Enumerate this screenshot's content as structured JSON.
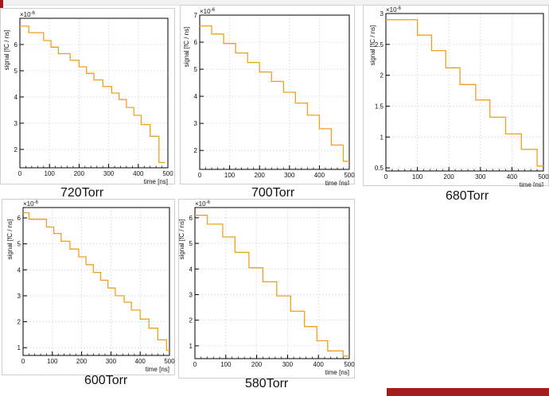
{
  "chart_data": [
    {
      "type": "line",
      "caption": "720Torr",
      "xlabel": "time [ns]",
      "ylabel": "signal [fC / ns]",
      "exponent": "×10",
      "exponent_power": "-6",
      "xlim": [
        0,
        500
      ],
      "ylim": [
        1.3,
        7.0
      ],
      "xticks": [
        0,
        100,
        200,
        300,
        400,
        500
      ],
      "yticks": [
        2,
        3,
        4,
        5,
        6
      ],
      "grid": true,
      "color": "#f0a020",
      "series": [
        {
          "x": [
            0,
            30,
            30,
            80,
            80,
            105,
            105,
            130,
            130,
            170,
            170,
            200,
            200,
            225,
            225,
            250,
            250,
            280,
            280,
            310,
            310,
            335,
            335,
            360,
            360,
            385,
            385,
            410,
            410,
            440,
            440,
            470,
            470,
            490
          ],
          "y": [
            6.7,
            6.7,
            6.45,
            6.45,
            6.15,
            6.15,
            5.9,
            5.9,
            5.65,
            5.65,
            5.4,
            5.4,
            5.15,
            5.15,
            4.9,
            4.9,
            4.65,
            4.65,
            4.4,
            4.4,
            4.15,
            4.15,
            3.9,
            3.9,
            3.6,
            3.6,
            3.3,
            3.3,
            2.95,
            2.95,
            2.5,
            2.5,
            1.5,
            1.5
          ]
        }
      ]
    },
    {
      "type": "line",
      "caption": "700Torr",
      "xlabel": "time [ns]",
      "ylabel": "signal [fC / ns]",
      "exponent": "×10",
      "exponent_power": "-6",
      "xlim": [
        0,
        500
      ],
      "ylim": [
        1.3,
        7.0
      ],
      "xticks": [
        0,
        100,
        200,
        300,
        400,
        500
      ],
      "yticks": [
        2,
        3,
        4,
        5,
        6,
        7
      ],
      "grid": true,
      "color": "#f0a020",
      "series": [
        {
          "x": [
            0,
            40,
            40,
            80,
            80,
            120,
            120,
            160,
            160,
            200,
            200,
            240,
            240,
            280,
            280,
            320,
            320,
            360,
            360,
            400,
            400,
            440,
            440,
            480,
            480,
            500
          ],
          "y": [
            6.6,
            6.6,
            6.3,
            6.3,
            5.95,
            5.95,
            5.6,
            5.6,
            5.25,
            5.25,
            4.9,
            4.9,
            4.55,
            4.55,
            4.15,
            4.15,
            3.75,
            3.75,
            3.3,
            3.3,
            2.8,
            2.8,
            2.2,
            2.2,
            1.6,
            1.6
          ]
        }
      ]
    },
    {
      "type": "line",
      "caption": "680Torr",
      "xlabel": "time [ns]",
      "ylabel": "signal [fC / ns]",
      "exponent": "×10",
      "exponent_power": "-6",
      "xlim": [
        0,
        500
      ],
      "ylim": [
        0.45,
        3.0
      ],
      "xticks": [
        0,
        100,
        200,
        300,
        400,
        500
      ],
      "yticks": [
        0.5,
        1,
        1.5,
        2,
        2.5,
        3
      ],
      "yticklabels": [
        "0.5",
        "1",
        "1.5",
        "2",
        "2.5",
        "3"
      ],
      "grid": true,
      "color": "#f0a020",
      "series": [
        {
          "x": [
            0,
            100,
            100,
            145,
            145,
            190,
            190,
            235,
            235,
            285,
            285,
            330,
            330,
            380,
            380,
            430,
            430,
            480,
            480,
            500
          ],
          "y": [
            2.9,
            2.9,
            2.65,
            2.65,
            2.4,
            2.4,
            2.12,
            2.12,
            1.85,
            1.85,
            1.6,
            1.6,
            1.32,
            1.32,
            1.05,
            1.05,
            0.8,
            0.8,
            0.53,
            0.53
          ]
        }
      ]
    },
    {
      "type": "line",
      "caption": "600Torr",
      "xlabel": "time [ns]",
      "ylabel": "signal [fC / ns]",
      "exponent": "×10",
      "exponent_power": "-6",
      "xlim": [
        0,
        500
      ],
      "ylim": [
        0.7,
        6.4
      ],
      "xticks": [
        0,
        100,
        200,
        300,
        400,
        500
      ],
      "yticks": [
        1,
        2,
        3,
        4,
        5,
        6
      ],
      "grid": true,
      "color": "#f0a020",
      "series": [
        {
          "x": [
            0,
            20,
            20,
            80,
            80,
            105,
            105,
            130,
            130,
            160,
            160,
            190,
            190,
            215,
            215,
            240,
            240,
            265,
            265,
            290,
            290,
            315,
            315,
            345,
            345,
            370,
            370,
            400,
            400,
            430,
            430,
            460,
            460,
            490,
            490,
            500
          ],
          "y": [
            6.2,
            6.2,
            5.95,
            5.95,
            5.65,
            5.65,
            5.4,
            5.4,
            5.1,
            5.1,
            4.8,
            4.8,
            4.5,
            4.5,
            4.2,
            4.2,
            3.9,
            3.9,
            3.6,
            3.6,
            3.3,
            3.3,
            3.0,
            3.0,
            2.75,
            2.75,
            2.45,
            2.45,
            2.1,
            2.1,
            1.75,
            1.75,
            1.3,
            1.3,
            0.9,
            0.9
          ]
        }
      ]
    },
    {
      "type": "line",
      "caption": "580Torr",
      "xlabel": "time [ns]",
      "ylabel": "signal [fC / ns]",
      "exponent": "×10",
      "exponent_power": "-6",
      "xlim": [
        0,
        500
      ],
      "ylim": [
        0.5,
        6.4
      ],
      "xticks": [
        0,
        100,
        200,
        300,
        400,
        500
      ],
      "yticks": [
        1,
        2,
        3,
        4,
        5,
        6
      ],
      "grid": true,
      "color": "#f0a020",
      "series": [
        {
          "x": [
            0,
            40,
            40,
            90,
            90,
            130,
            130,
            175,
            175,
            220,
            220,
            265,
            265,
            310,
            310,
            355,
            355,
            395,
            395,
            430,
            430,
            480,
            480,
            500
          ],
          "y": [
            6.1,
            6.1,
            5.75,
            5.75,
            5.25,
            5.25,
            4.65,
            4.65,
            4.05,
            4.05,
            3.5,
            3.5,
            2.95,
            2.95,
            2.35,
            2.35,
            1.75,
            1.75,
            1.2,
            1.2,
            0.8,
            0.8,
            0.6,
            0.6
          ]
        }
      ]
    }
  ]
}
